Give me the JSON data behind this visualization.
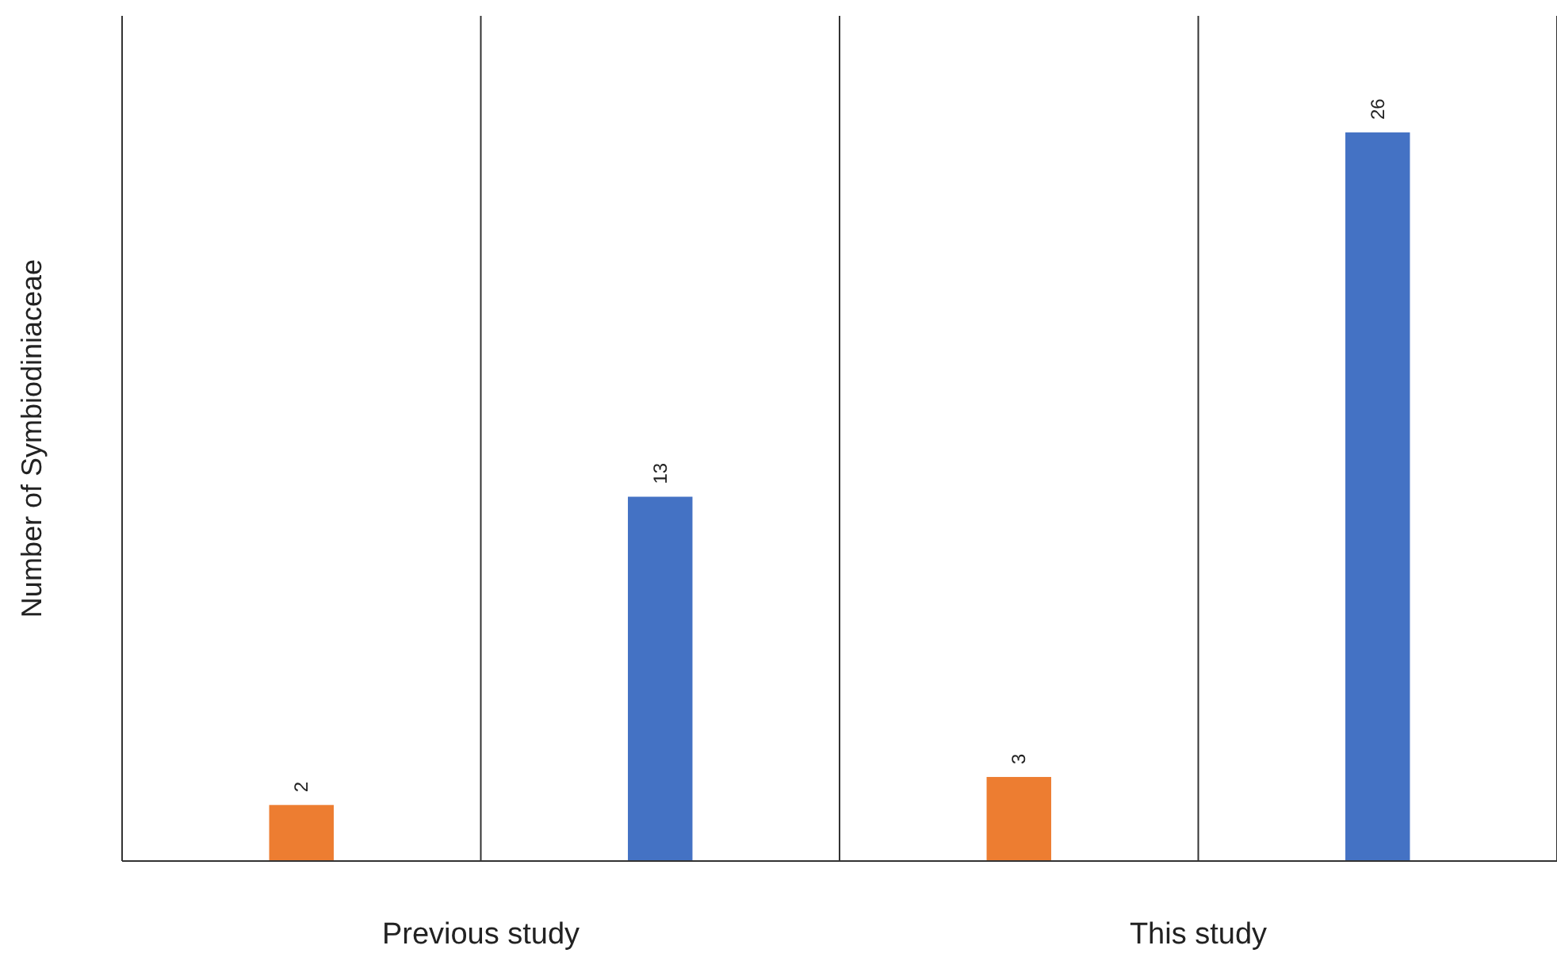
{
  "chart_data": {
    "type": "bar",
    "ylabel": "Number of Symbiodiniaceae",
    "categories": [
      "Previous study",
      "This study"
    ],
    "series": [
      {
        "color": "#ed7d31",
        "values": [
          2,
          3
        ]
      },
      {
        "color": "#4472c4",
        "values": [
          13,
          26
        ]
      }
    ],
    "data_labels": true,
    "grid": "x",
    "tick_labels": "x"
  }
}
